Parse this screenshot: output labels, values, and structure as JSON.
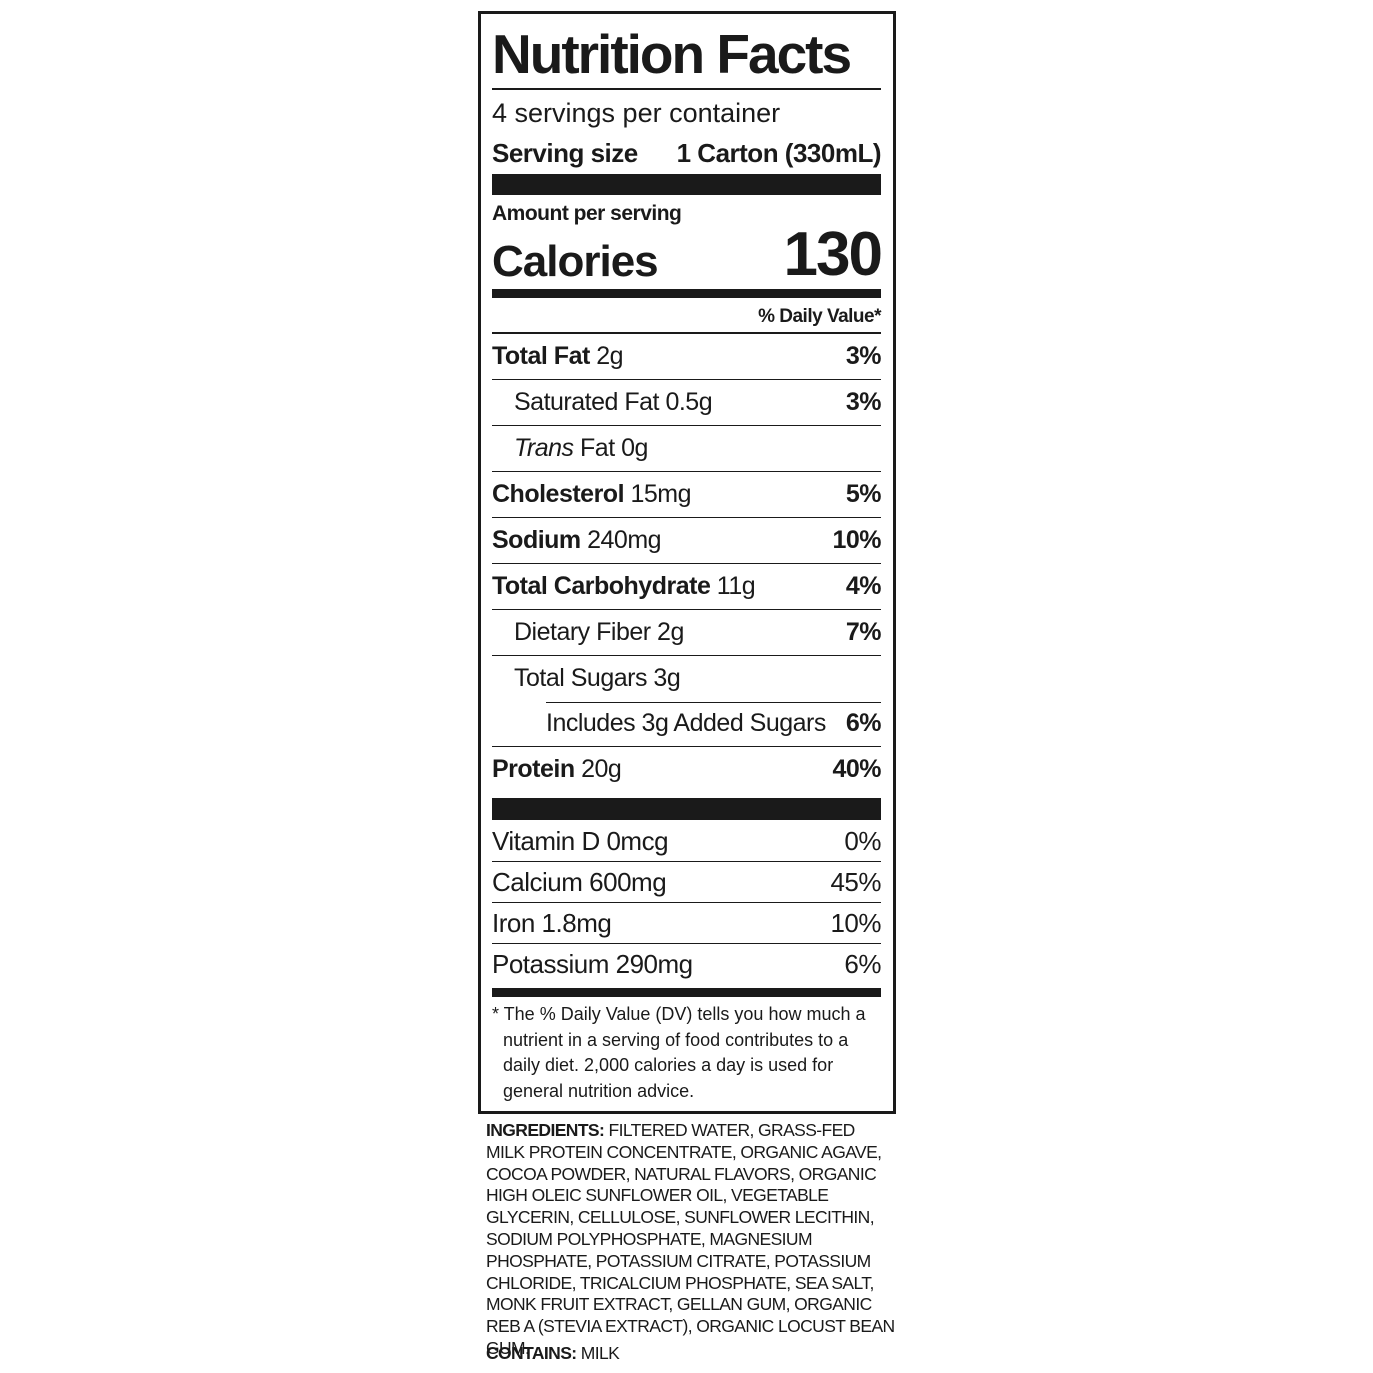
{
  "title": "Nutrition Facts",
  "servings": "4 servings per container",
  "serving_size": {
    "label": "Serving size",
    "value": "1 Carton (330mL)"
  },
  "amount_per_serving": "Amount per serving",
  "calories": {
    "label": "Calories",
    "value": "130"
  },
  "dv_header": "% Daily Value*",
  "nutrients": [
    {
      "name": "Total Fat",
      "amount": "2g",
      "dv": "3%"
    },
    {
      "name": "Saturated Fat",
      "amount": "0.5g",
      "dv": "3%"
    },
    {
      "name": "Trans",
      "amount": "Fat 0g"
    },
    {
      "name": "Cholesterol",
      "amount": "15mg",
      "dv": "5%"
    },
    {
      "name": "Sodium",
      "amount": "240mg",
      "dv": "10%"
    },
    {
      "name": "Total Carbohydrate",
      "amount": "11g",
      "dv": "4%"
    },
    {
      "name": "Dietary Fiber",
      "amount": "2g",
      "dv": "7%"
    },
    {
      "name": "Total Sugars",
      "amount": "3g"
    },
    {
      "name": "Includes 3g Added Sugars",
      "dv": "6%"
    },
    {
      "name": "Protein",
      "amount": "20g",
      "dv": "40%"
    }
  ],
  "vitamins": [
    {
      "name": "Vitamin D",
      "amount": "0mcg",
      "dv": "0%"
    },
    {
      "name": "Calcium",
      "amount": "600mg",
      "dv": "45%"
    },
    {
      "name": "Iron",
      "amount": "1.8mg",
      "dv": "10%"
    },
    {
      "name": "Potassium",
      "amount": "290mg",
      "dv": "6%"
    }
  ],
  "footnote": "* The % Daily Value (DV) tells you how much a nutrient in a serving of food contributes to a daily diet. 2,000 calories a day is used for general nutrition advice.",
  "ingredients": {
    "label": "INGREDIENTS:",
    "text": "FILTERED WATER, GRASS-FED MILK PROTEIN CONCENTRATE, ORGANIC AGAVE, COCOA POWDER, NATURAL FLAVORS, ORGANIC HIGH OLEIC SUNFLOWER OIL, VEGETABLE GLYCERIN, CELLULOSE, SUNFLOWER LECITHIN, SODIUM POLYPHOSPHATE, MAGNESIUM PHOSPHATE, POTASSIUM CITRATE, POTASSIUM CHLORIDE, TRICALCIUM PHOSPHATE, SEA SALT, MONK FRUIT EXTRACT, GELLAN GUM, ORGANIC REB A (STEVIA EXTRACT), ORGANIC LOCUST BEAN GUM."
  },
  "contains": {
    "label": "CONTAINS:",
    "text": "MILK"
  }
}
